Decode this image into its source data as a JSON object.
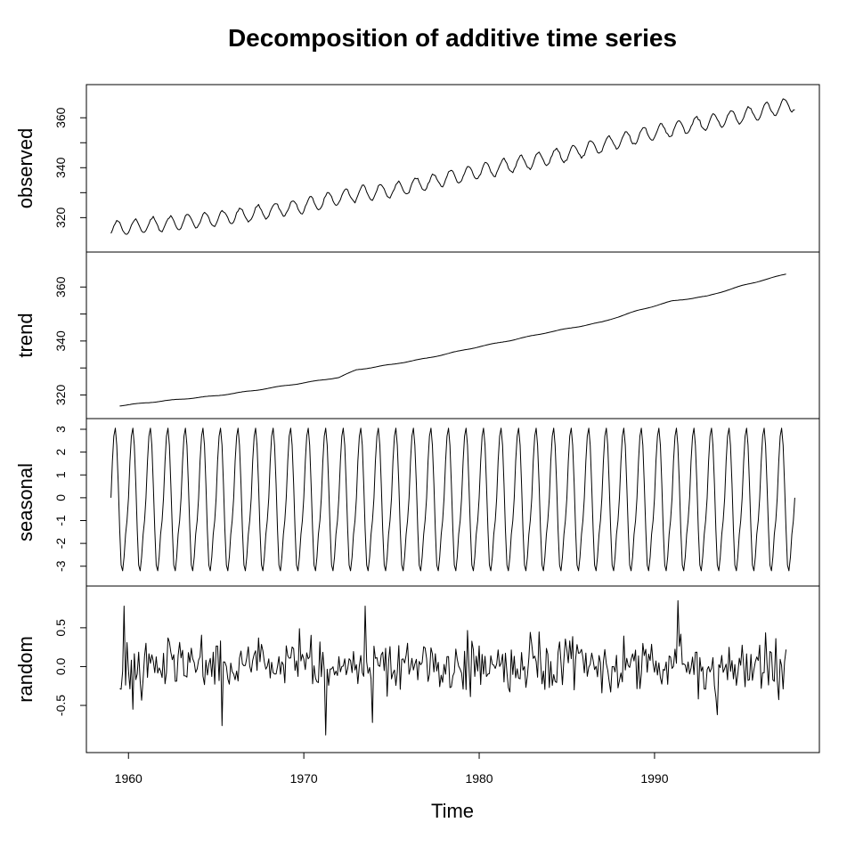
{
  "chart_data": {
    "type": "line",
    "title": "Decomposition of additive time series",
    "xlabel": "Time",
    "xlim": [
      1957.6,
      1999.4
    ],
    "x_ticks": [
      1960,
      1970,
      1980,
      1990
    ],
    "x_start": 1959.0,
    "x_step": 0.08333,
    "grid": false,
    "panels": [
      {
        "name": "observed",
        "ylabel": "observed",
        "ylim": [
          310.5,
          369
        ],
        "y_ticks": [
          320,
          340,
          360
        ],
        "y_minor_ticks": [
          310,
          330,
          350,
          370
        ],
        "trend": {
          "years": [
            1959,
            1965,
            1970,
            1973,
            1975,
            1980,
            1985,
            1990,
            1995,
            1998
          ],
          "values": [
            315.5,
            319.5,
            324.7,
            329.5,
            331.0,
            338.5,
            345.5,
            354.2,
            360.8,
            365.5
          ]
        },
        "seasonal_amplitude": 3.1,
        "noise_amplitude": 0.35
      },
      {
        "name": "trend",
        "ylabel": "trend",
        "ylim": [
          315.2,
          369
        ],
        "y_ticks": [
          320,
          340,
          360
        ],
        "y_minor_ticks": [
          330,
          350
        ],
        "x_start": 1959.5,
        "x_end": 1997.5,
        "values": {
          "years": [
            1959.5,
            1962,
            1965,
            1967,
            1970,
            1972,
            1973,
            1975,
            1977,
            1980,
            1982,
            1984,
            1987,
            1989,
            1991,
            1993,
            1995,
            1997.5
          ],
          "values": [
            316.0,
            317.8,
            319.7,
            321.5,
            324.5,
            326.5,
            329.3,
            331.3,
            333.6,
            337.9,
            340.5,
            343.3,
            347.0,
            351.2,
            354.8,
            356.6,
            360.5,
            364.8
          ]
        }
      },
      {
        "name": "seasonal",
        "ylabel": "seasonal",
        "ylim": [
          -3.4,
          3.0
        ],
        "y_ticks": [
          3,
          2,
          1,
          0,
          -1,
          -2,
          -3
        ],
        "amplitude": 3.1,
        "cycle_values": [
          0.0,
          1.6,
          2.7,
          3.05,
          2.3,
          0.6,
          -1.4,
          -2.95,
          -3.2,
          -2.6,
          -1.6,
          -1.0
        ]
      },
      {
        "name": "random",
        "ylabel": "random",
        "ylim": [
          -0.97,
          0.9
        ],
        "y_ticks": [
          0.5,
          0.0,
          -0.5
        ],
        "y_tick_labels": [
          "0.5",
          "0.0",
          "-0.5"
        ],
        "x_start": 1959.5,
        "x_end": 1997.5,
        "noise_sd": 0.25,
        "spikes": [
          {
            "year": 1959.75,
            "value": 0.78
          },
          {
            "year": 1960.25,
            "value": -0.55
          },
          {
            "year": 1965.3,
            "value": -0.76
          },
          {
            "year": 1971.25,
            "value": -0.88
          },
          {
            "year": 1973.5,
            "value": 0.78
          },
          {
            "year": 1973.9,
            "value": -0.72
          },
          {
            "year": 1991.3,
            "value": 0.85
          },
          {
            "year": 1993.6,
            "value": -0.62
          }
        ]
      }
    ]
  }
}
